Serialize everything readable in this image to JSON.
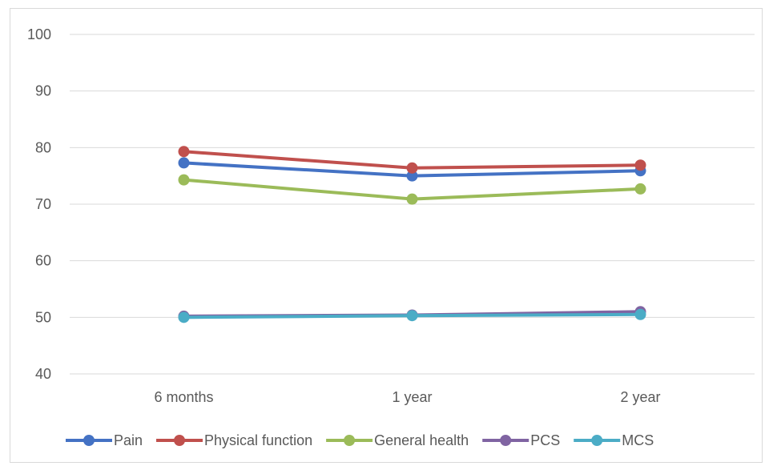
{
  "chart_data": {
    "type": "line",
    "title": "",
    "xlabel": "",
    "ylabel": "",
    "categories": [
      "6 months",
      "1 year",
      "2 year"
    ],
    "ylim": [
      40,
      100
    ],
    "yticks": [
      "40",
      "50",
      "60",
      "70",
      "80",
      "90",
      "100"
    ],
    "grid": true,
    "legend_position": "bottom",
    "series": [
      {
        "name": "Pain",
        "color": "#4472c4",
        "values": [
          77.3,
          75.0,
          75.9
        ]
      },
      {
        "name": "Physical function",
        "color": "#c0504d",
        "values": [
          79.3,
          76.4,
          76.9
        ]
      },
      {
        "name": "General health",
        "color": "#9bbb59",
        "values": [
          74.3,
          70.9,
          72.7
        ]
      },
      {
        "name": "PCS",
        "color": "#8064a2",
        "values": [
          50.2,
          50.4,
          51.0
        ]
      },
      {
        "name": "MCS",
        "color": "#4bacc6",
        "values": [
          50.0,
          50.3,
          50.5
        ]
      }
    ]
  }
}
